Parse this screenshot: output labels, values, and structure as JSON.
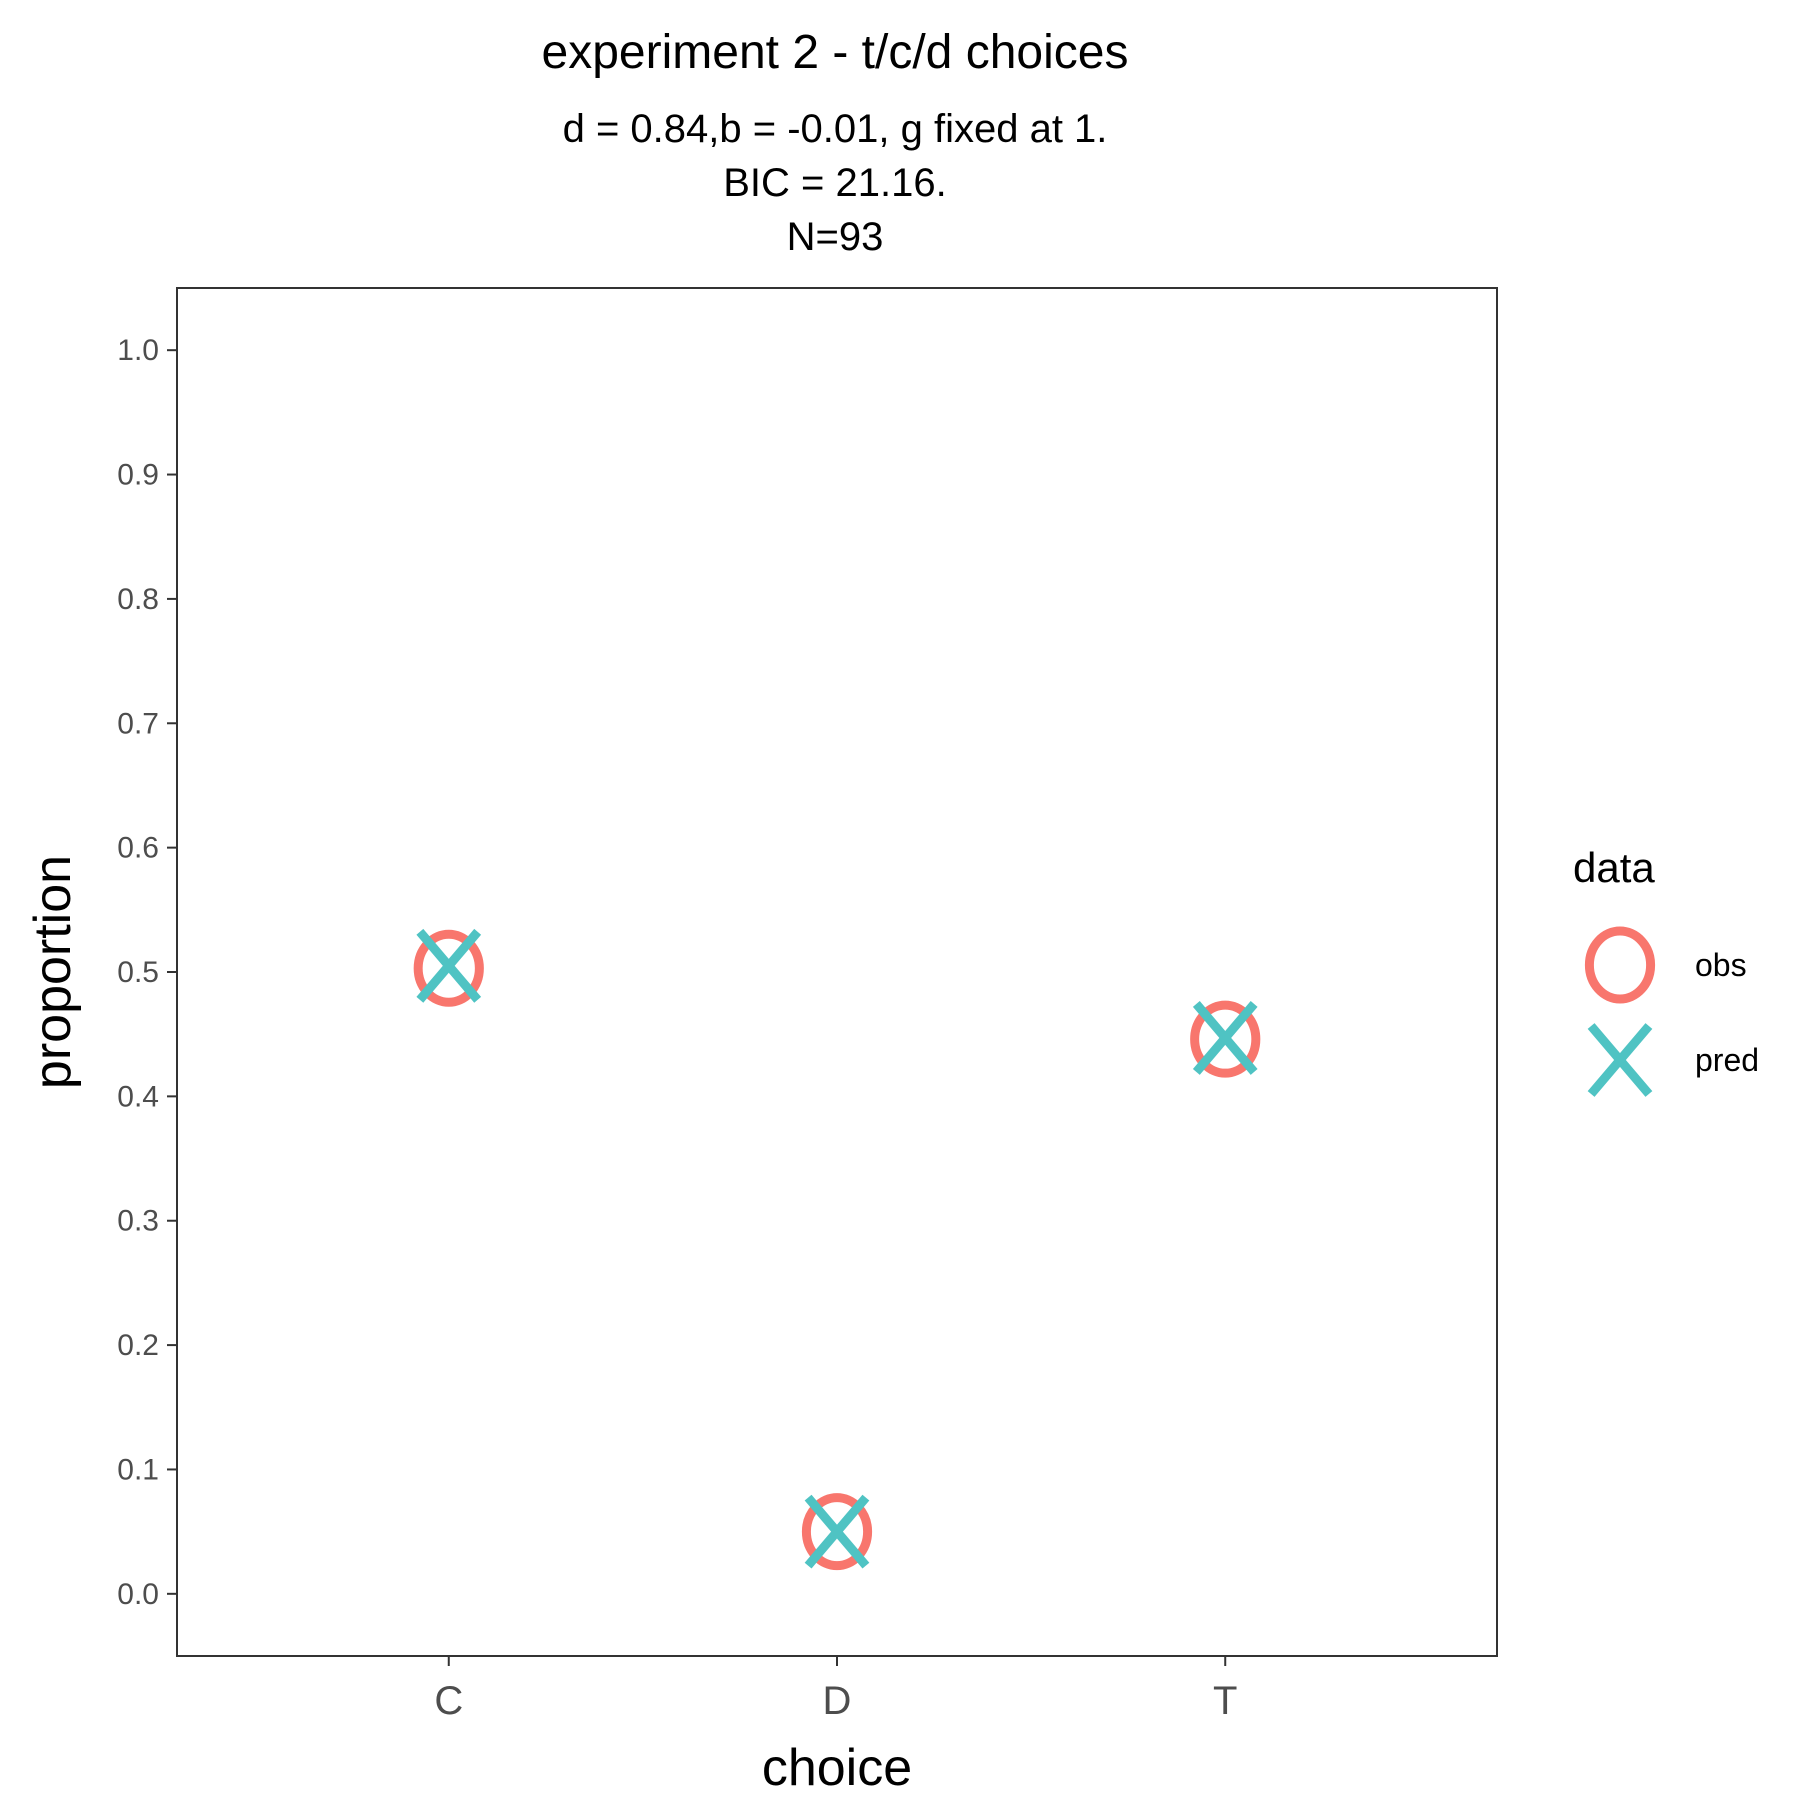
{
  "chart_data": {
    "type": "scatter",
    "title": "experiment 2 - t/c/d choices",
    "subtitle_lines": [
      "d = 0.84,b = -0.01, g fixed at 1.",
      "BIC = 21.16.",
      "N=93"
    ],
    "xlabel": "choice",
    "ylabel": "proportion",
    "categories": [
      "C",
      "D",
      "T"
    ],
    "ylim": [
      -0.05,
      1.05
    ],
    "yticks": [
      0.0,
      0.1,
      0.2,
      0.3,
      0.4,
      0.5,
      0.6,
      0.7,
      0.8,
      0.9,
      1.0
    ],
    "ytick_labels": [
      "0.0",
      "0.1",
      "0.2",
      "0.3",
      "0.4",
      "0.5",
      "0.6",
      "0.7",
      "0.8",
      "0.9",
      "1.0"
    ],
    "grid": false,
    "legend": {
      "title": "data",
      "position": "right"
    },
    "series": [
      {
        "name": "obs",
        "marker": "circle",
        "color": "#F8766D",
        "values": [
          0.503,
          0.05,
          0.446
        ]
      },
      {
        "name": "pred",
        "marker": "x",
        "color": "#4FC3C3",
        "values": [
          0.505,
          0.05,
          0.447
        ]
      }
    ]
  }
}
